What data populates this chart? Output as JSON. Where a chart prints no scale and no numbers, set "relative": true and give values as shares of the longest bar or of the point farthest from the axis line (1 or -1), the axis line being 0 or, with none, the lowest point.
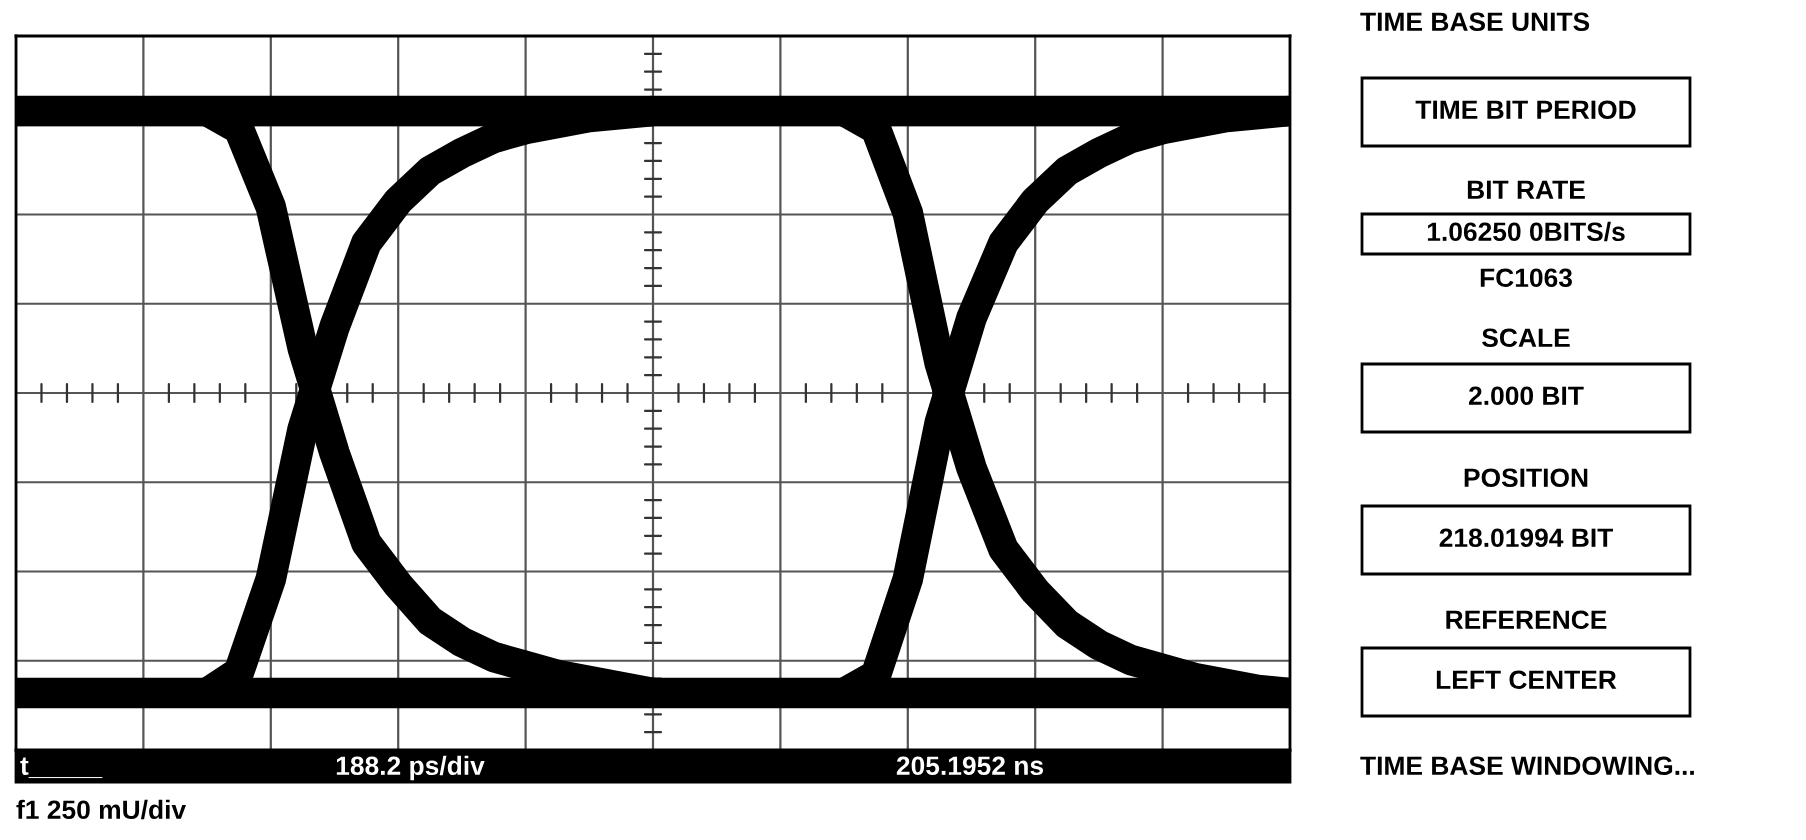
{
  "chart_data": {
    "type": "line",
    "relative": true,
    "grid": true,
    "line_style": "solid",
    "marker": "none",
    "categories": [
      null,
      null,
      null,
      null,
      null,
      null,
      null,
      null,
      null,
      null,
      null,
      null,
      null,
      null,
      null,
      null,
      null,
      null,
      null,
      null,
      null,
      null,
      null,
      null,
      null,
      null,
      null,
      null,
      null,
      null,
      null,
      null,
      null,
      null,
      null,
      null,
      null,
      null,
      null,
      null,
      null
    ],
    "series": [
      {
        "color": "#000000",
        "values": [
          null,
          null,
          null,
          null,
          null,
          null,
          0.94,
          0.88,
          0.62,
          0.15,
          -0.2,
          -0.5,
          -0.64,
          -0.76,
          -0.83,
          -0.88,
          -0.91,
          -0.94,
          -0.96,
          -0.98,
          -1,
          null,
          null,
          null,
          null,
          null,
          null,
          null,
          null,
          null,
          null,
          null,
          null,
          null,
          null,
          null,
          null,
          null,
          null,
          null,
          null
        ]
      },
      {
        "color": "#000000",
        "values": [
          null,
          null,
          null,
          null,
          null,
          null,
          -1,
          -0.93,
          -0.62,
          -0.12,
          0.22,
          0.5,
          0.64,
          0.74,
          0.8,
          0.85,
          0.88,
          0.9,
          0.92,
          0.93,
          0.94,
          null,
          null,
          null,
          null,
          null,
          null,
          null,
          null,
          null,
          null,
          null,
          null,
          null,
          null,
          null,
          null,
          null,
          null,
          null,
          null
        ]
      },
      {
        "color": "#000000",
        "values": [
          null,
          null,
          null,
          null,
          null,
          null,
          null,
          null,
          null,
          null,
          null,
          null,
          null,
          null,
          null,
          null,
          null,
          null,
          null,
          null,
          null,
          null,
          null,
          null,
          null,
          null,
          0.94,
          0.88,
          0.6,
          0.1,
          -0.25,
          -0.52,
          -0.66,
          -0.77,
          -0.84,
          -0.89,
          -0.92,
          -0.95,
          -0.97,
          -0.99,
          -1
        ]
      },
      {
        "color": "#000000",
        "values": [
          null,
          null,
          null,
          null,
          null,
          null,
          null,
          null,
          null,
          null,
          null,
          null,
          null,
          null,
          null,
          null,
          null,
          null,
          null,
          null,
          null,
          null,
          null,
          null,
          null,
          null,
          -1,
          -0.94,
          -0.62,
          -0.1,
          0.25,
          0.5,
          0.64,
          0.74,
          0.8,
          0.85,
          0.88,
          0.9,
          0.92,
          0.93,
          0.94
        ]
      },
      {
        "color": "#000000",
        "values": [
          0.94,
          0.94,
          0.94,
          0.94,
          0.94,
          0.94,
          0.94,
          0.94,
          0.94,
          0.94,
          0.94,
          0.94,
          0.94,
          0.94,
          0.94,
          0.94,
          0.94,
          0.94,
          0.94,
          0.94,
          0.94,
          0.94,
          0.94,
          0.94,
          0.94,
          0.94,
          0.94,
          0.94,
          0.94,
          0.94,
          0.94,
          0.94,
          0.94,
          0.94,
          0.94,
          0.94,
          0.94,
          0.94,
          0.94,
          0.94,
          0.94
        ]
      },
      {
        "color": "#000000",
        "values": [
          -1,
          -1,
          -1,
          -1,
          -1,
          -1,
          -1,
          -1,
          -1,
          -1,
          -1,
          -1,
          -1,
          -1,
          -1,
          -1,
          -1,
          -1,
          -1,
          -1,
          -1,
          -1,
          -1,
          -1,
          -1,
          -1,
          -1,
          -1,
          -1,
          -1,
          -1,
          -1,
          -1,
          -1,
          -1,
          -1,
          -1,
          -1,
          -1,
          -1,
          -1
        ]
      }
    ],
    "annotations": [
      "TIME BASE UNITS",
      "TIME BIT PERIOD",
      "BIT RATE",
      "1.06250 0BITS/s",
      "FC1063",
      "SCALE",
      "2.000 BIT",
      "POSITION",
      "218.01994 BIT",
      "REFERENCE",
      "LEFT CENTER",
      "TIME BASE WINDOWING...",
      "t_____",
      "188.2 ps/div",
      "205.1952 ns",
      "f1 250 mU/div"
    ]
  }
}
